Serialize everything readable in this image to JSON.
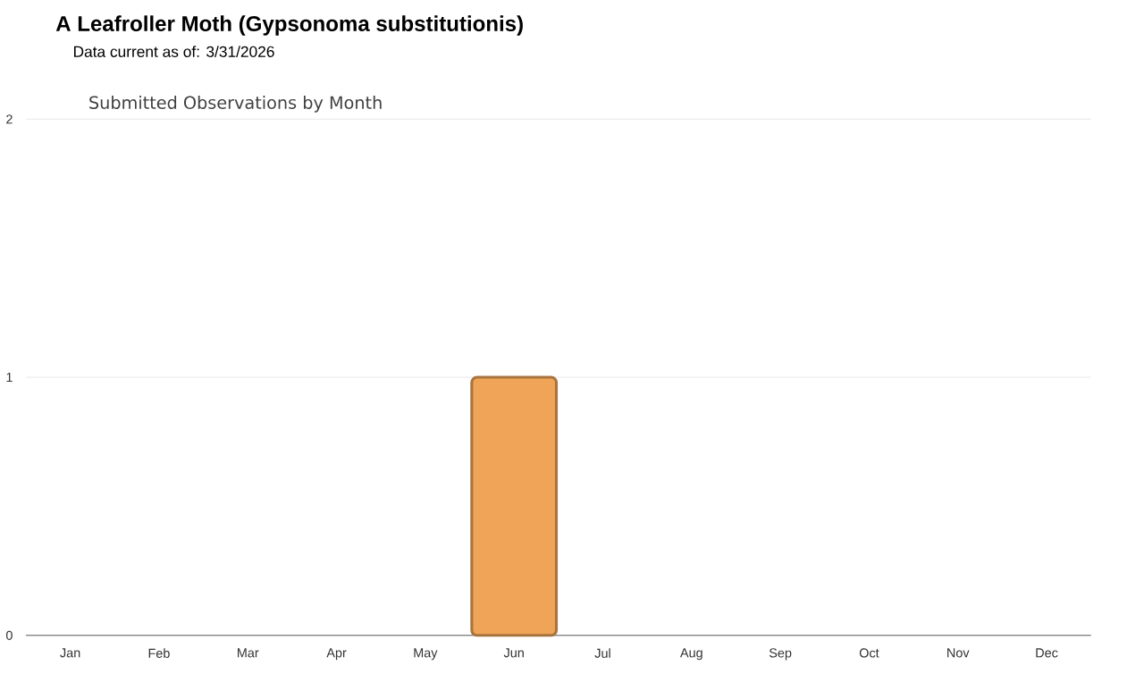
{
  "chart_data": {
    "type": "bar",
    "title": "A Leafroller Moth   (Gypsonoma substitutionis)",
    "subtitle": "Data current as of: 3/31/2026",
    "annotations": [
      "Submitted Observations by Month"
    ],
    "categories": [
      "Jan",
      "Feb",
      "Mar",
      "Apr",
      "May",
      "Jun",
      "Jul",
      "Aug",
      "Sep",
      "Oct",
      "Nov",
      "Dec"
    ],
    "values": [
      0,
      0,
      0,
      0,
      0,
      1,
      0,
      0,
      0,
      0,
      0,
      0
    ],
    "color": "#f0a458",
    "ylim": [
      0,
      2
    ],
    "yticks": [
      0,
      1,
      2
    ],
    "grid": "y"
  }
}
